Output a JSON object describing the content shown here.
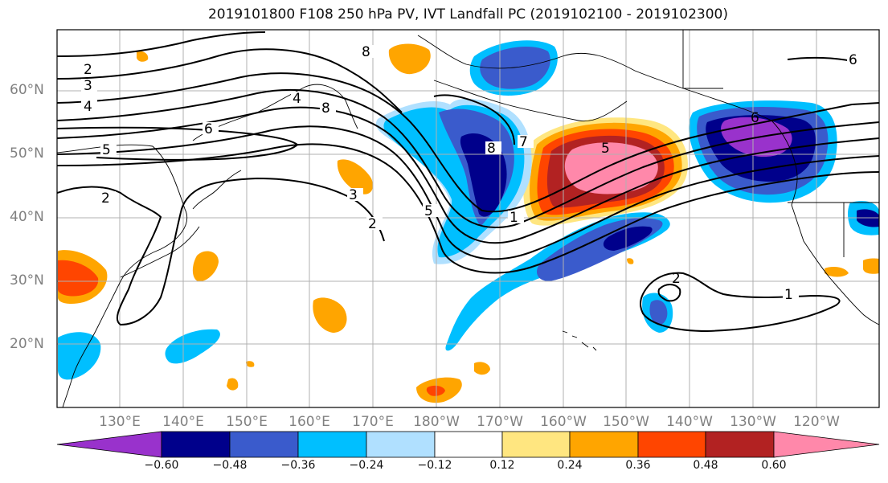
{
  "title": "2019101800 F108 250 hPa PV, IVT Landfall PC (2019102100 - 2019102300)",
  "latitude_labels": [
    "60°N",
    "50°N",
    "40°N",
    "30°N",
    "20°N"
  ],
  "longitude_labels": [
    "130°E",
    "140°E",
    "150°E",
    "160°E",
    "170°E",
    "180°W",
    "170°W",
    "160°W",
    "150°W",
    "140°W",
    "130°W",
    "120°W"
  ],
  "colorbar": {
    "tick_labels": [
      "−0.60",
      "−0.48",
      "−0.36",
      "−0.24",
      "−0.12",
      "0.12",
      "0.24",
      "0.36",
      "0.48",
      "0.60"
    ],
    "colors": [
      "#9932cc",
      "#00008b",
      "#3a5bcc",
      "#00bfff",
      "#b0e0ff",
      "#ffffff",
      "#ffe680",
      "#ffa500",
      "#ff4500",
      "#b22222",
      "#ff88aa"
    ]
  },
  "contour_labels": [
    "2",
    "3",
    "4",
    "5",
    "6",
    "2",
    "3",
    "4",
    "8",
    "8",
    "5",
    "7",
    "2",
    "8",
    "1",
    "5",
    "6",
    "2",
    "1",
    "6"
  ],
  "colors": {
    "land_line": "#000000",
    "grid": "#b0b0b0",
    "contour": "#000000"
  }
}
